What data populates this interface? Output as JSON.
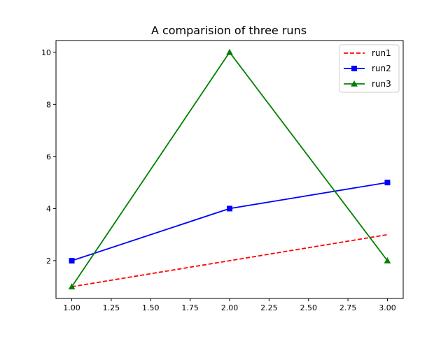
{
  "chart_data": {
    "type": "line",
    "title": "A comparision of three runs",
    "xlabel": "",
    "ylabel": "",
    "xlim": [
      0.9,
      3.1
    ],
    "ylim": [
      0.55,
      10.45
    ],
    "xticks": [
      1.0,
      1.25,
      1.5,
      1.75,
      2.0,
      2.25,
      2.5,
      2.75,
      3.0
    ],
    "xtick_labels": [
      "1.00",
      "1.25",
      "1.50",
      "1.75",
      "2.00",
      "2.25",
      "2.50",
      "2.75",
      "3.00"
    ],
    "yticks": [
      2,
      4,
      6,
      8,
      10
    ],
    "ytick_labels": [
      "2",
      "4",
      "6",
      "8",
      "10"
    ],
    "grid": false,
    "legend_position": "top-right",
    "x": [
      1,
      2,
      3
    ],
    "series": [
      {
        "name": "run1",
        "values": [
          1,
          2,
          3
        ],
        "color": "#ff0000",
        "line_style": "dashed",
        "marker": "none"
      },
      {
        "name": "run2",
        "values": [
          2,
          4,
          5
        ],
        "color": "#0000ff",
        "line_style": "solid",
        "marker": "square"
      },
      {
        "name": "run3",
        "values": [
          1,
          10,
          2
        ],
        "color": "#008000",
        "line_style": "solid",
        "marker": "triangle"
      }
    ]
  }
}
